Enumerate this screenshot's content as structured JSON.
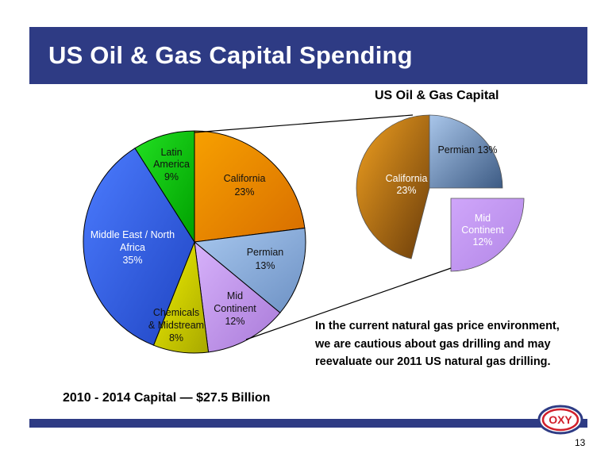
{
  "header": {
    "title": "US Oil & Gas Capital Spending"
  },
  "chart_data": [
    {
      "type": "pie",
      "slices": [
        {
          "label": "California",
          "value": 23,
          "value_label": "23%",
          "color": "#f08a00"
        },
        {
          "label": "Permian",
          "value": 13,
          "value_label": "13%",
          "color": "#8eb2df"
        },
        {
          "label": "Mid Continent",
          "value": 12,
          "value_label": "12%",
          "color": "#c296ee"
        },
        {
          "label": "Chemicals & Midstream",
          "value": 8,
          "value_label": "8%",
          "color": "#d8d800"
        },
        {
          "label": "Middle East / North Africa",
          "value": 35,
          "value_label": "35%",
          "color": "#2f5fe6"
        },
        {
          "label": "Latin America",
          "value": 9,
          "value_label": "9%",
          "color": "#00c800"
        }
      ]
    },
    {
      "type": "pie",
      "title": "US Oil & Gas Capital",
      "slices": [
        {
          "label": "California",
          "value": 23,
          "value_label": "23%",
          "color": "#e68a10"
        },
        {
          "label": "Permian",
          "value": 13,
          "value_label": "13%",
          "color": "#8eb2df"
        },
        {
          "label": "Mid Continent",
          "value": 12,
          "value_label": "12%",
          "color": "#c296ee"
        }
      ]
    }
  ],
  "labels": {
    "california": [
      "California",
      "23%"
    ],
    "permian": [
      "Permian",
      "13%"
    ],
    "mid_continent": [
      "Mid",
      "Continent",
      "12%"
    ],
    "chemicals": [
      "Chemicals",
      "& Midstream",
      "8%"
    ],
    "mena": [
      "Middle East / North",
      "Africa",
      "35%"
    ],
    "latam": [
      "Latin",
      "America",
      "9%"
    ],
    "zoom_california": [
      "California",
      "23%"
    ],
    "zoom_permian": "Permian 13%",
    "zoom_mid": [
      "Mid",
      "Continent",
      "12%"
    ]
  },
  "note": [
    "In the current natural gas price environment,",
    "we are cautious about gas drilling and may",
    "reevaluate our 2011 US natural gas drilling."
  ],
  "total": "2010 - 2014 Capital — $27.5 Billion",
  "logo": {
    "text": "OXY",
    "color": "#d11f2a"
  },
  "footer": {
    "page": "13"
  }
}
